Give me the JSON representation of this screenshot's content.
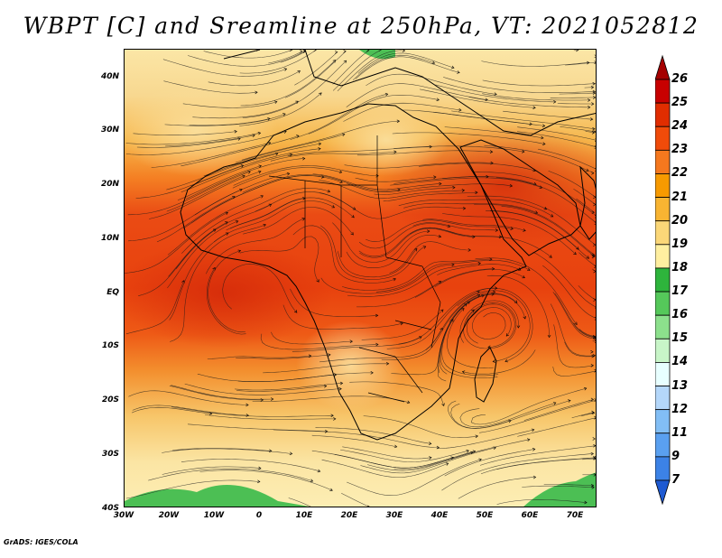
{
  "title": "WBPT [C] and Sreamline at 250hPa, VT: 2021052812",
  "credit": "GrADS: IGES/COLA",
  "map": {
    "lat_labels": [
      "40N",
      "30N",
      "20N",
      "10N",
      "EQ",
      "10S",
      "20S",
      "30S",
      "40S"
    ],
    "lon_labels": [
      "30W",
      "20W",
      "10W",
      "0",
      "10E",
      "20E",
      "30E",
      "40E",
      "50E",
      "60E",
      "70E"
    ],
    "lat_range": [
      -40,
      45
    ],
    "lon_range": [
      -30,
      75
    ]
  },
  "colorbar": {
    "labels": [
      "26",
      "25",
      "24",
      "23",
      "22",
      "21",
      "20",
      "19",
      "18",
      "17",
      "16",
      "15",
      "14",
      "13",
      "12",
      "11",
      "9",
      "7"
    ],
    "colors": [
      "#a50000",
      "#c80000",
      "#e12d00",
      "#f04b0a",
      "#f5781e",
      "#f79a00",
      "#f8b432",
      "#fbd778",
      "#ffefa0",
      "#2eb43c",
      "#55c85a",
      "#8ce08c",
      "#c8f5c8",
      "#e8ffff",
      "#b4d7fa",
      "#82bef5",
      "#5aa0f0",
      "#3c82e6",
      "#1e5ad2"
    ]
  }
}
